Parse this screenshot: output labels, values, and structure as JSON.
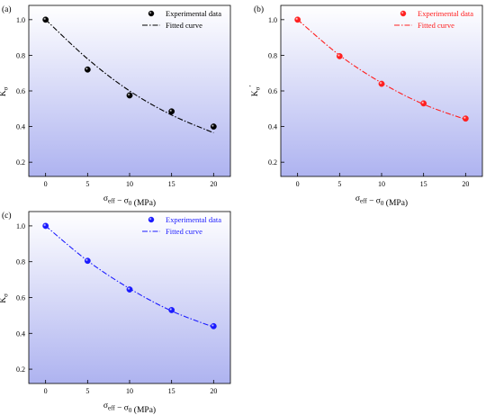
{
  "chart_data": [
    {
      "type": "scatter",
      "panel_label": "(a)",
      "xlabel": "σ_eff − σ_0 (MPa)",
      "ylabel": "K_σ′",
      "xlim": [
        -2,
        22
      ],
      "ylim": [
        0.12,
        1.08
      ],
      "xticks": [
        0,
        5,
        10,
        15,
        20
      ],
      "yticks": [
        0.2,
        0.4,
        0.6,
        0.8,
        1.0
      ],
      "series": [
        {
          "name": "Experimental data",
          "kind": "points",
          "color": "#000000",
          "x": [
            0,
            5,
            10,
            15,
            20
          ],
          "y": [
            1.0,
            0.72,
            0.575,
            0.485,
            0.4
          ]
        },
        {
          "name": "Fitted curve",
          "kind": "fit",
          "color": "#000000",
          "x": [
            0,
            5,
            10,
            15,
            20
          ],
          "y": [
            1.0,
            0.78,
            0.6,
            0.465,
            0.365
          ]
        }
      ],
      "background_gradient": [
        "#ffffff",
        "#aeb3f0"
      ],
      "grid": false,
      "legend_position": "top-right"
    },
    {
      "type": "scatter",
      "panel_label": "(b)",
      "xlabel": "σ_eff − σ_0 (MPa)",
      "ylabel": "K_σ′",
      "xlim": [
        -2,
        22
      ],
      "ylim": [
        0.12,
        1.08
      ],
      "xticks": [
        0,
        5,
        10,
        15,
        20
      ],
      "yticks": [
        0.2,
        0.4,
        0.6,
        0.8,
        1.0
      ],
      "series": [
        {
          "name": "Experimental data",
          "kind": "points",
          "color": "#ff2020",
          "x": [
            0,
            5,
            10,
            15,
            20
          ],
          "y": [
            1.0,
            0.795,
            0.64,
            0.53,
            0.445
          ]
        },
        {
          "name": "Fitted curve",
          "kind": "fit",
          "color": "#ff2020",
          "x": [
            0,
            5,
            10,
            15,
            20
          ],
          "y": [
            1.0,
            0.8,
            0.645,
            0.525,
            0.44
          ]
        }
      ],
      "background_gradient": [
        "#ffffff",
        "#aeb3f0"
      ],
      "grid": false,
      "legend_position": "top-right"
    },
    {
      "type": "scatter",
      "panel_label": "(c)",
      "xlabel": "σ_eff − σ_0 (MPa)",
      "ylabel": "K_σ′",
      "xlim": [
        -2,
        22
      ],
      "ylim": [
        0.12,
        1.08
      ],
      "xticks": [
        0,
        5,
        10,
        15,
        20
      ],
      "yticks": [
        0.2,
        0.4,
        0.6,
        0.8,
        1.0
      ],
      "series": [
        {
          "name": "Experimental data",
          "kind": "points",
          "color": "#1a1aff",
          "x": [
            0,
            5,
            10,
            15,
            20
          ],
          "y": [
            1.0,
            0.805,
            0.645,
            0.53,
            0.44
          ]
        },
        {
          "name": "Fitted curve",
          "kind": "fit",
          "color": "#1a1aff",
          "x": [
            0,
            5,
            10,
            15,
            20
          ],
          "y": [
            1.0,
            0.805,
            0.65,
            0.525,
            0.435
          ]
        }
      ],
      "background_gradient": [
        "#ffffff",
        "#aeb3f0"
      ],
      "grid": false,
      "legend_position": "top-right"
    }
  ]
}
